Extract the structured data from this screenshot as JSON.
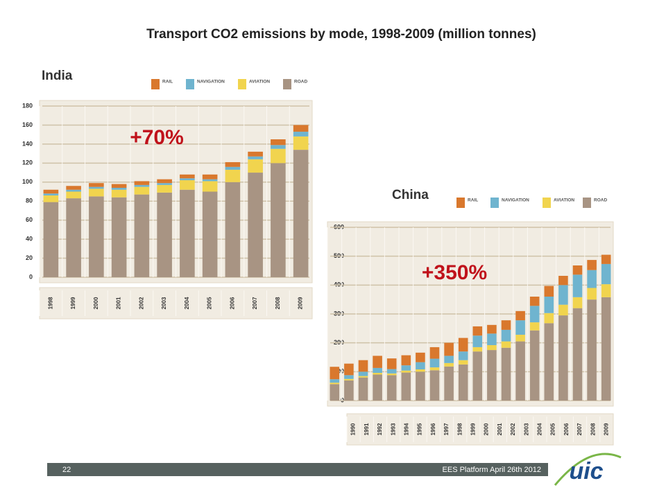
{
  "slide": {
    "title": "Transport CO2 emissions by mode, 1998-2009  (million tonnes)",
    "page_number": "22",
    "footer": "EES Platform April 26th 2012",
    "logo": "uic"
  },
  "chart_data": [
    {
      "type": "stacked-bar",
      "title": "India",
      "annotation": "+70%",
      "categories": [
        "1998",
        "1999",
        "2000",
        "2001",
        "2002",
        "2003",
        "2004",
        "2005",
        "2006",
        "2007",
        "2008",
        "2009"
      ],
      "series": [
        {
          "name": "RAIL",
          "color": "#d9782d",
          "values": [
            4,
            4,
            4,
            4,
            4,
            4,
            4,
            5,
            5,
            5,
            6,
            7
          ]
        },
        {
          "name": "NAVIGATION",
          "color": "#6fb4cf",
          "values": [
            2,
            2,
            2,
            2,
            2,
            2,
            2,
            2,
            3,
            3,
            4,
            5
          ]
        },
        {
          "name": "AVIATION",
          "color": "#f1d44e",
          "values": [
            7,
            7,
            8,
            8,
            8,
            8,
            10,
            11,
            13,
            14,
            15,
            14
          ]
        },
        {
          "name": "ROAD",
          "color": "#a89483",
          "values": [
            79,
            83,
            85,
            84,
            87,
            89,
            92,
            90,
            100,
            110,
            120,
            134
          ]
        }
      ],
      "ylim": [
        0,
        180
      ],
      "yticks": [
        0,
        20,
        40,
        60,
        80,
        100,
        120,
        140,
        160,
        180
      ],
      "grid": true
    },
    {
      "type": "stacked-bar",
      "title": "China",
      "annotation": "+350%",
      "categories": [
        "1990",
        "1991",
        "1992",
        "1993",
        "1994",
        "1995",
        "1996",
        "1997",
        "1998",
        "1999",
        "2000",
        "2001",
        "2002",
        "2003",
        "2004",
        "2005",
        "2006",
        "2007",
        "2008",
        "2009"
      ],
      "series": [
        {
          "name": "RAIL",
          "color": "#d9782d",
          "values": [
            43,
            40,
            40,
            42,
            37,
            35,
            33,
            40,
            45,
            47,
            32,
            30,
            33,
            32,
            32,
            37,
            32,
            32,
            35,
            32
          ]
        },
        {
          "name": "NAVIGATION",
          "color": "#6fb4cf",
          "values": [
            12,
            13,
            15,
            17,
            15,
            18,
            25,
            30,
            25,
            30,
            40,
            40,
            40,
            50,
            57,
            57,
            68,
            78,
            62,
            70
          ]
        },
        {
          "name": "AVIATION",
          "color": "#f1d44e",
          "values": [
            5,
            5,
            5,
            6,
            6,
            7,
            8,
            10,
            12,
            15,
            15,
            17,
            22,
            23,
            28,
            35,
            37,
            38,
            40,
            45
          ]
        },
        {
          "name": "ROAD",
          "color": "#a89483",
          "values": [
            57,
            70,
            80,
            90,
            88,
            97,
            100,
            105,
            118,
            125,
            170,
            175,
            183,
            205,
            243,
            268,
            295,
            320,
            350,
            358
          ]
        }
      ],
      "ylim": [
        0,
        600
      ],
      "yticks": [
        0,
        100,
        200,
        300,
        400,
        500,
        600
      ],
      "grid": true
    }
  ]
}
